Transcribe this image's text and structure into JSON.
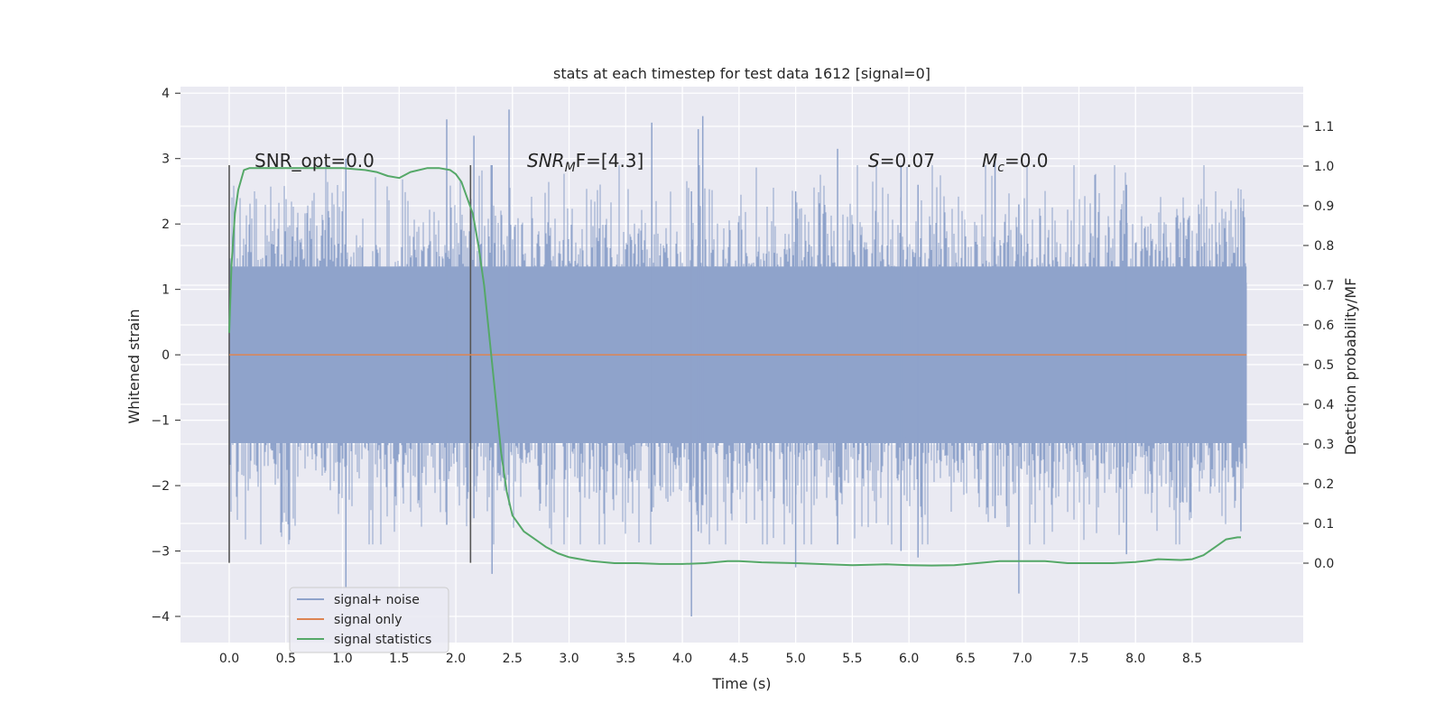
{
  "chart_data": {
    "type": "line",
    "title": "stats at each timestep for test data 1612 [signal=0]",
    "xlabel": "Time (s)",
    "ylabel_left": "Whitened strain",
    "ylabel_right": "Detection probability/MF",
    "xlim": [
      -0.43,
      9.48
    ],
    "ylim_left": [
      -4.4,
      4.1
    ],
    "ylim_right": [
      -0.2,
      1.2
    ],
    "x_ticks": [
      "0.0",
      "0.5",
      "1.0",
      "1.5",
      "2.0",
      "2.5",
      "3.0",
      "3.5",
      "4.0",
      "4.5",
      "5.0",
      "5.5",
      "6.0",
      "6.5",
      "7.0",
      "7.5",
      "8.0",
      "8.5"
    ],
    "y_ticks_left": [
      "4",
      "3",
      "2",
      "1",
      "0",
      "−1",
      "−2",
      "−3",
      "−4"
    ],
    "y_ticks_right": [
      "1.1",
      "1.0",
      "0.9",
      "0.8",
      "0.7",
      "0.6",
      "0.5",
      "0.4",
      "0.3",
      "0.2",
      "0.1",
      "0.0"
    ],
    "annotations": {
      "snr_opt": "SNR_opt=0.0",
      "snr_mf_base": "SNR",
      "snr_mf_sub": "M",
      "snr_mf_rest": "F=[4.3]",
      "s_label": "S",
      "s_value": "=0.07",
      "mc_base": "M",
      "mc_sub": "c",
      "mc_value": "=0.0"
    },
    "vertical_markers": [
      0.0,
      2.13
    ],
    "noise": {
      "t_start": 0.0,
      "t_end": 8.98,
      "dense_band": [
        -1.35,
        1.35
      ],
      "spikes": [
        {
          "t": 1.03,
          "lo": -3.55,
          "hi": 3.0
        },
        {
          "t": 1.92,
          "lo": -2.6,
          "hi": 3.6
        },
        {
          "t": 2.16,
          "lo": -2.5,
          "hi": 3.35
        },
        {
          "t": 2.32,
          "lo": -3.35,
          "hi": 2.9
        },
        {
          "t": 2.47,
          "lo": -2.3,
          "hi": 3.75
        },
        {
          "t": 3.73,
          "lo": -2.4,
          "hi": 3.55
        },
        {
          "t": 4.08,
          "lo": -4.0,
          "hi": 2.5
        },
        {
          "t": 4.18,
          "lo": -2.3,
          "hi": 3.65
        },
        {
          "t": 4.14,
          "lo": -2.7,
          "hi": 3.45
        },
        {
          "t": 5.0,
          "lo": -3.25,
          "hi": 2.5
        },
        {
          "t": 5.37,
          "lo": -2.9,
          "hi": 3.15
        },
        {
          "t": 5.93,
          "lo": -3.0,
          "hi": 2.9
        },
        {
          "t": 6.08,
          "lo": -3.1,
          "hi": 2.6
        },
        {
          "t": 6.76,
          "lo": -2.5,
          "hi": 3.0
        },
        {
          "t": 6.97,
          "lo": -3.65,
          "hi": 2.3
        },
        {
          "t": 7.92,
          "lo": -3.05,
          "hi": 2.6
        },
        {
          "t": 8.93,
          "lo": -2.7,
          "hi": 2.25
        }
      ]
    },
    "series": [
      {
        "name": "signal+ noise",
        "color": "#8fa3cb"
      },
      {
        "name": "signal only",
        "color": "#dd8452",
        "constant": 0.0
      },
      {
        "name": "signal statistics",
        "color": "#55a868",
        "x": [
          0.0,
          0.02,
          0.05,
          0.08,
          0.1,
          0.13,
          0.18,
          0.25,
          0.4,
          0.7,
          1.0,
          1.2,
          1.3,
          1.4,
          1.5,
          1.6,
          1.75,
          1.85,
          1.95,
          2.0,
          2.05,
          2.1,
          2.15,
          2.2,
          2.25,
          2.3,
          2.35,
          2.4,
          2.45,
          2.5,
          2.55,
          2.6,
          2.7,
          2.8,
          2.9,
          3.0,
          3.1,
          3.2,
          3.4,
          3.6,
          3.8,
          4.0,
          4.2,
          4.4,
          4.5,
          4.7,
          5.0,
          5.2,
          5.5,
          5.8,
          6.0,
          6.2,
          6.4,
          6.6,
          6.8,
          7.0,
          7.2,
          7.4,
          7.6,
          7.8,
          8.0,
          8.1,
          8.2,
          8.4,
          8.5,
          8.6,
          8.7,
          8.8,
          8.9,
          8.93
        ],
        "values": [
          0.58,
          0.75,
          0.88,
          0.94,
          0.96,
          0.99,
          0.995,
          0.995,
          0.995,
          0.995,
          0.995,
          0.99,
          0.985,
          0.975,
          0.97,
          0.985,
          0.995,
          0.995,
          0.99,
          0.98,
          0.96,
          0.92,
          0.88,
          0.8,
          0.7,
          0.56,
          0.42,
          0.28,
          0.18,
          0.12,
          0.1,
          0.08,
          0.06,
          0.04,
          0.025,
          0.015,
          0.01,
          0.005,
          0.0,
          0.0,
          -0.002,
          -0.002,
          0.0,
          0.005,
          0.005,
          0.002,
          0.0,
          -0.002,
          -0.005,
          -0.003,
          -0.005,
          -0.006,
          -0.005,
          0.0,
          0.005,
          0.005,
          0.005,
          0.0,
          0.0,
          0.0,
          0.003,
          0.006,
          0.01,
          0.008,
          0.01,
          0.02,
          0.04,
          0.06,
          0.065,
          0.065
        ]
      }
    ],
    "legend_position": "lower-left"
  }
}
